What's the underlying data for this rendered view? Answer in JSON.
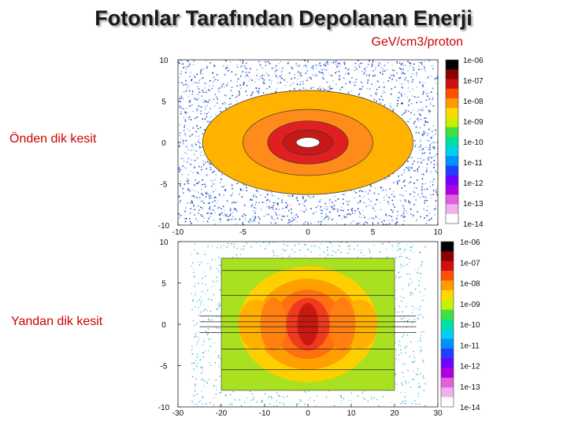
{
  "title": "Fotonlar Tarafından Depolanan Enerji",
  "unit_label": "GeV/cm3/proton",
  "front_label": "Önden dik kesit",
  "side_label": "Yandan dik kesit",
  "chart_data": [
    {
      "type": "heatmap",
      "view": "front cross-section",
      "x_ticks": [
        "-10",
        "-5",
        "0",
        "5",
        "10"
      ],
      "y_ticks": [
        "10",
        "5",
        "0",
        "-5",
        "-10"
      ],
      "xlim": [
        -10,
        10
      ],
      "ylim": [
        -10,
        10
      ],
      "colorbar_ticks": [
        "1e-06",
        "1e-07",
        "1e-08",
        "1e-09",
        "1e-10",
        "1e-11",
        "1e-12",
        "1e-13",
        "1e-14"
      ],
      "colorbar_log_range": [
        -14,
        -6
      ],
      "regions": [
        {
          "shape": "ellipse",
          "rx": 8.1,
          "ry": 6.3,
          "log_level": -8.7,
          "color": "#ffb300"
        },
        {
          "shape": "ellipse",
          "rx": 5.0,
          "ry": 4.0,
          "log_level": -8.0,
          "color": "#ff8c1a"
        },
        {
          "shape": "ellipse",
          "rx": 3.1,
          "ry": 2.6,
          "log_level": -7.3,
          "color": "#e02020"
        },
        {
          "shape": "ellipse",
          "rx": 1.9,
          "ry": 1.5,
          "log_level": -6.7,
          "color": "#c81818"
        },
        {
          "shape": "ellipse",
          "rx": 0.9,
          "ry": 0.6,
          "log_level": null,
          "color": "#ffffff"
        }
      ],
      "background": "scattered low-energy deposits (1e-13 to 1e-12)"
    },
    {
      "type": "heatmap",
      "view": "side cross-section",
      "x_ticks": [
        "-30",
        "-20",
        "-10",
        "0",
        "10",
        "20",
        "30"
      ],
      "y_ticks": [
        "10",
        "5",
        "0",
        "-5",
        "-10"
      ],
      "xlim": [
        -30,
        30
      ],
      "ylim": [
        -10,
        10
      ],
      "colorbar_ticks": [
        "1e-06",
        "1e-07",
        "1e-08",
        "1e-09",
        "1e-10",
        "1e-11",
        "1e-12",
        "1e-13",
        "1e-14"
      ],
      "colorbar_log_range": [
        -14,
        -6
      ],
      "box": {
        "x": [
          -20,
          20
        ],
        "y": [
          -8,
          8
        ],
        "color": "#a9e020",
        "log_level": -9.7
      },
      "blobs": [
        {
          "cx": 0,
          "cy": 0,
          "rx": 16,
          "ry": 7,
          "color": "#ffd000"
        },
        {
          "cx": 0,
          "cy": 0,
          "rx": 12,
          "ry": 5.5,
          "color": "#ffa000"
        },
        {
          "cx": 0,
          "cy": 0,
          "rx": 8,
          "ry": 4.2,
          "color": "#ff7010"
        },
        {
          "cx": 0,
          "cy": 0,
          "rx": 5,
          "ry": 3.2,
          "color": "#f03a20"
        },
        {
          "cx": 0,
          "cy": 0,
          "rx": 2.5,
          "ry": 2.6,
          "color": "#d42010"
        }
      ],
      "layer_lines_y": [
        6.5,
        3.5,
        1,
        0.3,
        -0.3,
        -1,
        -3,
        -5.5
      ]
    }
  ]
}
